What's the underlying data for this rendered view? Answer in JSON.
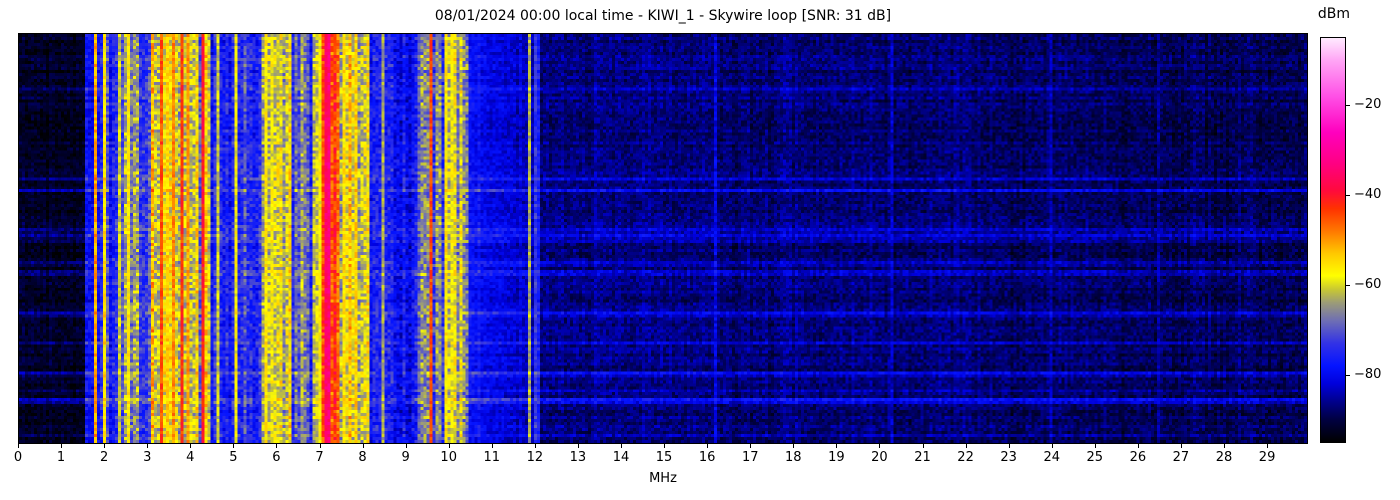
{
  "chart_data": {
    "type": "heatmap",
    "subtype": "rf-spectrogram-waterfall",
    "title": "08/01/2024 00:00 local time - KIWI_1 - Skywire loop [SNR: 31 dB]",
    "xlabel": "MHz",
    "xlim": [
      0,
      29.95
    ],
    "x_ticks": [
      0,
      1,
      2,
      3,
      4,
      5,
      6,
      7,
      8,
      9,
      10,
      11,
      12,
      13,
      14,
      15,
      16,
      17,
      18,
      19,
      20,
      21,
      22,
      23,
      24,
      25,
      26,
      27,
      28,
      29
    ],
    "y_axis_ticks": "none shown",
    "grid": {
      "cols": 430,
      "rows": 137
    },
    "seed": 42,
    "colorbar": {
      "label": "dBm",
      "top_value": -5,
      "bottom_value": -95,
      "ticks": [
        {
          "v": -20,
          "label": "−20"
        },
        {
          "v": -40,
          "label": "−40"
        },
        {
          "v": -60,
          "label": "−60"
        },
        {
          "v": -80,
          "label": "−80"
        }
      ]
    },
    "colormap": [
      [
        -95,
        "#000000"
      ],
      [
        -90,
        "#000041"
      ],
      [
        -86,
        "#00008c"
      ],
      [
        -82,
        "#0000dc"
      ],
      [
        -78,
        "#0514ff"
      ],
      [
        -73,
        "#3232e6"
      ],
      [
        -68,
        "#6e6eb4"
      ],
      [
        -64,
        "#9b9b78"
      ],
      [
        -61,
        "#c8c832"
      ],
      [
        -58,
        "#ffff00"
      ],
      [
        -53,
        "#ffc800"
      ],
      [
        -48,
        "#ff7800"
      ],
      [
        -43,
        "#ff3200"
      ],
      [
        -39,
        "#ff0a3c"
      ],
      [
        -33,
        "#ff0082"
      ],
      [
        -26,
        "#ff00be"
      ],
      [
        -18,
        "#ff50e6"
      ],
      [
        -10,
        "#ffa5f5"
      ],
      [
        -5,
        "#ffebff"
      ]
    ],
    "bands": [
      {
        "f0": 0.0,
        "f1": 1.55,
        "base": -92,
        "base2": -92,
        "sv": 1.5,
        "nv": 2.5
      },
      {
        "f0": 1.55,
        "f1": 2.05,
        "base": -79,
        "base2": -79,
        "sv": 5,
        "nv": 4
      },
      {
        "f0": 2.05,
        "f1": 2.45,
        "base": -75,
        "base2": -75,
        "sv": 6,
        "nv": 5
      },
      {
        "f0": 2.45,
        "f1": 2.8,
        "base": -64,
        "base2": -64,
        "sv": 7,
        "nv": 6
      },
      {
        "f0": 2.8,
        "f1": 3.05,
        "base": -73,
        "base2": -73,
        "sv": 6,
        "nv": 5
      },
      {
        "f0": 3.05,
        "f1": 4.45,
        "base": -61,
        "base2": -61,
        "sv": 9,
        "nv": 6
      },
      {
        "f0": 4.45,
        "f1": 5.65,
        "base": -75,
        "base2": -75,
        "sv": 8,
        "nv": 5
      },
      {
        "f0": 5.65,
        "f1": 6.35,
        "base": -61,
        "base2": -61,
        "sv": 8,
        "nv": 6
      },
      {
        "f0": 6.35,
        "f1": 6.85,
        "base": -71,
        "base2": -71,
        "sv": 8,
        "nv": 5
      },
      {
        "f0": 6.85,
        "f1": 7.05,
        "base": -63,
        "base2": -63,
        "sv": 7,
        "nv": 5
      },
      {
        "f0": 7.05,
        "f1": 7.45,
        "base": -47,
        "base2": -47,
        "sv": 6,
        "nv": 5
      },
      {
        "f0": 7.45,
        "f1": 8.15,
        "base": -60,
        "base2": -60,
        "sv": 8,
        "nv": 6
      },
      {
        "f0": 8.15,
        "f1": 9.3,
        "base": -76,
        "base2": -76,
        "sv": 7,
        "nv": 5
      },
      {
        "f0": 9.3,
        "f1": 10.45,
        "base": -66,
        "base2": -66,
        "sv": 9,
        "nv": 6
      },
      {
        "f0": 10.45,
        "f1": 11.95,
        "base": -79,
        "base2": -84,
        "sv": 2.5,
        "nv": 3
      },
      {
        "f0": 11.95,
        "f1": 12.1,
        "base": -74,
        "base2": -74,
        "sv": 3,
        "nv": 3
      },
      {
        "f0": 12.1,
        "f1": 29.95,
        "base": -86.5,
        "base2": -89,
        "sv": 1.8,
        "nv": 3
      }
    ],
    "stripes": [
      [
        1.8,
        0.05,
        -52
      ],
      [
        1.98,
        0.04,
        -56
      ],
      [
        2.1,
        0.04,
        -60
      ],
      [
        2.35,
        0.04,
        -62
      ],
      [
        2.57,
        0.08,
        -58
      ],
      [
        2.72,
        0.04,
        -62
      ],
      [
        3.2,
        0.05,
        -50
      ],
      [
        3.3,
        0.05,
        -44
      ],
      [
        3.45,
        0.04,
        -54
      ],
      [
        3.57,
        0.04,
        -48
      ],
      [
        3.7,
        0.05,
        -56
      ],
      [
        3.8,
        0.05,
        -44
      ],
      [
        3.95,
        0.06,
        -52
      ],
      [
        4.1,
        0.04,
        -56
      ],
      [
        4.28,
        0.1,
        -42
      ],
      [
        4.62,
        0.05,
        -60
      ],
      [
        4.88,
        0.04,
        -62
      ],
      [
        5.06,
        0.05,
        -58
      ],
      [
        5.37,
        0.05,
        -57
      ],
      [
        5.52,
        0.03,
        -64
      ],
      [
        5.75,
        0.05,
        -55
      ],
      [
        5.9,
        0.04,
        -58
      ],
      [
        6.05,
        0.05,
        -54
      ],
      [
        6.2,
        0.04,
        -58
      ],
      [
        6.55,
        0.04,
        -63
      ],
      [
        6.75,
        0.04,
        -61
      ],
      [
        7.0,
        0.04,
        -58
      ],
      [
        7.2,
        0.13,
        -35
      ],
      [
        7.38,
        0.05,
        -44
      ],
      [
        7.55,
        0.05,
        -54
      ],
      [
        7.7,
        0.04,
        -57
      ],
      [
        7.85,
        0.05,
        -53
      ],
      [
        8.0,
        0.04,
        -58
      ],
      [
        8.35,
        0.03,
        -66
      ],
      [
        8.47,
        0.04,
        -62
      ],
      [
        8.72,
        0.03,
        -67
      ],
      [
        9.05,
        0.04,
        -64
      ],
      [
        9.4,
        0.06,
        -58
      ],
      [
        9.56,
        0.05,
        -43
      ],
      [
        9.75,
        0.05,
        -58
      ],
      [
        9.9,
        0.06,
        -55
      ],
      [
        10.05,
        0.04,
        -60
      ],
      [
        10.24,
        0.05,
        -43
      ],
      [
        10.38,
        0.04,
        -56
      ],
      [
        11.89,
        0.03,
        -63
      ],
      [
        11.98,
        0.04,
        -58
      ],
      [
        12.2,
        0.025,
        -79
      ],
      [
        13.5,
        0.03,
        -82
      ],
      [
        14.9,
        0.03,
        -83
      ],
      [
        16.2,
        0.03,
        -82
      ],
      [
        17.4,
        0.025,
        -84
      ],
      [
        18.6,
        0.03,
        -83
      ],
      [
        20.3,
        0.03,
        -83
      ],
      [
        22.1,
        0.025,
        -84
      ],
      [
        24.0,
        0.03,
        -84
      ],
      [
        26.5,
        0.03,
        -84
      ],
      [
        28.2,
        0.025,
        -84
      ]
    ],
    "row_streaks": {
      "count": 14,
      "boost_min": 3,
      "boost_max": 8
    }
  }
}
